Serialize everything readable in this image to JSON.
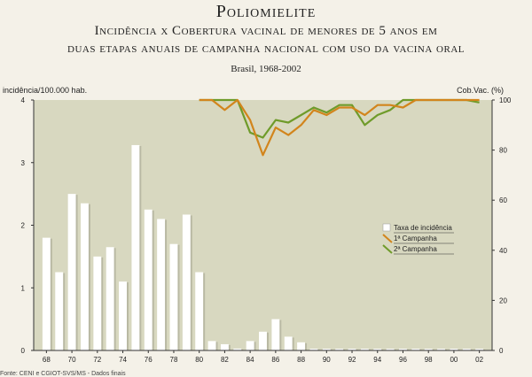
{
  "header": {
    "title": "Poliomielite",
    "subtitle_line1": "Incidência x Cobertura vacinal de menores de 5 anos em",
    "subtitle_line2": "duas etapas anuais de campanha nacional com uso da vacina oral",
    "place": "Brasil, 1968-2002"
  },
  "source": "Fonte: CENI e CGIOT-SVS/MS - Dados finais",
  "colors": {
    "plot_background": "#d8d8c0",
    "bar": "#ffffff",
    "campanha1": "#d2851c",
    "campanha2": "#6f9b2a"
  },
  "chart_data": {
    "type": "bar",
    "title": "Poliomielite",
    "ylabel_left": "incidência/100.000 hab.",
    "ylabel_right": "Cob.Vac. (%)",
    "ylim_left": [
      0,
      4
    ],
    "ylim_right": [
      0,
      100
    ],
    "yticks_left": [
      "0",
      "1",
      "2",
      "3",
      "4"
    ],
    "yticks_right": [
      "0",
      "20",
      "40",
      "60",
      "80",
      "100"
    ],
    "xlim": [
      1967,
      2003
    ],
    "xticks": [
      "68",
      "70",
      "72",
      "74",
      "76",
      "78",
      "80",
      "82",
      "84",
      "86",
      "88",
      "90",
      "92",
      "94",
      "96",
      "98",
      "00",
      "02"
    ],
    "xtick_years": [
      1968,
      1970,
      1972,
      1974,
      1976,
      1978,
      1980,
      1982,
      1984,
      1986,
      1988,
      1990,
      1992,
      1994,
      1996,
      1998,
      2000,
      2002
    ],
    "legend": [
      "Taxa de incidência",
      "1ª Campanha",
      "2ª Campanha"
    ],
    "incidence": {
      "name": "Taxa de incidência",
      "x": [
        1968,
        1969,
        1970,
        1971,
        1972,
        1973,
        1974,
        1975,
        1976,
        1977,
        1978,
        1979,
        1980,
        1981,
        1982,
        1983,
        1984,
        1985,
        1986,
        1987,
        1988,
        1989,
        1990,
        1991,
        1992,
        1993,
        1994,
        1995,
        1996,
        1997,
        1998,
        1999,
        2000,
        2001,
        2002
      ],
      "values": [
        1.8,
        1.25,
        2.5,
        2.35,
        1.5,
        1.65,
        1.1,
        3.28,
        2.25,
        2.1,
        1.7,
        2.17,
        1.25,
        0.15,
        0.1,
        0.03,
        0.15,
        0.3,
        0.5,
        0.22,
        0.13,
        0.02,
        0,
        0,
        0,
        0,
        0,
        0,
        0,
        0,
        0,
        0,
        0,
        0,
        0
      ]
    },
    "campanha1": {
      "name": "1ª Campanha",
      "x": [
        1980,
        1981,
        1982,
        1983,
        1984,
        1985,
        1986,
        1987,
        1988,
        1989,
        1990,
        1991,
        1992,
        1993,
        1994,
        1995,
        1996,
        1997,
        1998,
        1999,
        2000,
        2001,
        2002
      ],
      "values": [
        100,
        100,
        96,
        100,
        92,
        78,
        89,
        86,
        90,
        96,
        94,
        97,
        97,
        94,
        98,
        98,
        97,
        100,
        100,
        100,
        100,
        100,
        100
      ]
    },
    "campanha2": {
      "name": "2ª Campanha",
      "x": [
        1980,
        1981,
        1982,
        1983,
        1984,
        1985,
        1986,
        1987,
        1988,
        1989,
        1990,
        1991,
        1992,
        1993,
        1994,
        1995,
        1996,
        1997,
        1998,
        1999,
        2000,
        2001,
        2002
      ],
      "values": [
        100,
        100,
        100,
        100,
        87,
        85,
        92,
        91,
        94,
        97,
        95,
        98,
        98,
        90,
        94,
        96,
        100,
        100,
        100,
        100,
        100,
        100,
        99
      ]
    }
  }
}
